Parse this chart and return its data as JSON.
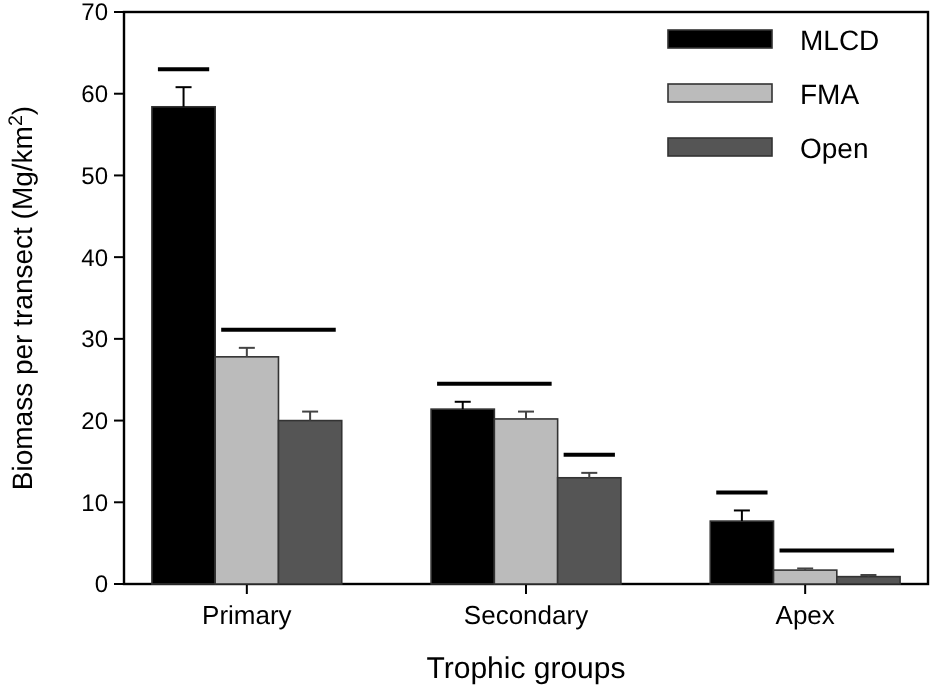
{
  "chart_data": {
    "type": "bar",
    "xlabel": "Trophic groups",
    "ylabel": "Biomass per transect (Mg/km$^{2}$)",
    "categories": [
      "Primary",
      "Secondary",
      "Apex"
    ],
    "series": [
      {
        "name": "MLCD",
        "color": "#000000",
        "values": [
          58.4,
          21.4,
          7.7
        ],
        "errors": [
          2.4,
          0.9,
          1.3
        ]
      },
      {
        "name": "FMA",
        "color": "#bbbbbb",
        "values": [
          27.8,
          20.2,
          1.7
        ],
        "errors": [
          1.1,
          0.9,
          0.2
        ]
      },
      {
        "name": "Open",
        "color": "#555555",
        "values": [
          20.0,
          13.0,
          0.9
        ],
        "errors": [
          1.1,
          0.6,
          0.2
        ]
      }
    ],
    "ylim": [
      0,
      70
    ],
    "yticks": [
      0,
      10,
      20,
      30,
      40,
      50,
      60,
      70
    ],
    "legend": "top right"
  }
}
